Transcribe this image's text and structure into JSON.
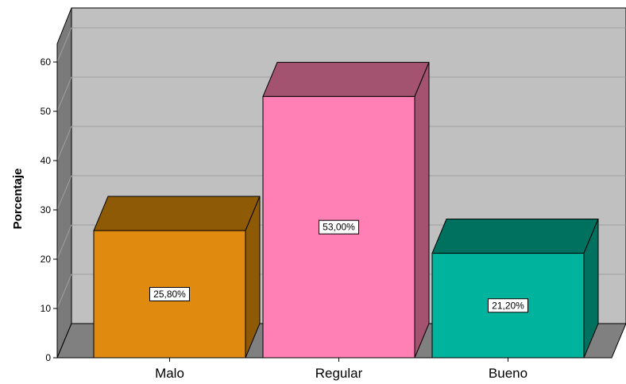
{
  "chart_data": {
    "type": "bar",
    "title": "",
    "xlabel": "",
    "ylabel": "Porcentaje",
    "ylim": [
      0,
      60
    ],
    "yticks": [
      0,
      10,
      20,
      30,
      40,
      50,
      60
    ],
    "categories": [
      "Malo",
      "Regular",
      "Bueno"
    ],
    "values": [
      25.8,
      53.0,
      21.2
    ],
    "data_labels": [
      "25,80%",
      "53,00%",
      "21,20%"
    ],
    "colors": {
      "bars": [
        {
          "front": "#e08a10",
          "top": "#8f5a06",
          "side": "#8f5a06"
        },
        {
          "front": "#ff80b4",
          "top": "#a3536f",
          "side": "#a3536f"
        },
        {
          "front": "#00b39c",
          "top": "#00705f",
          "side": "#00705f"
        }
      ],
      "wall": "#c0c0c0",
      "floor": "#808080",
      "side_wall": "#7a7a7a",
      "grid": "#9e9e9e"
    },
    "style": "3d-bars",
    "grid": true,
    "legend": "none"
  }
}
